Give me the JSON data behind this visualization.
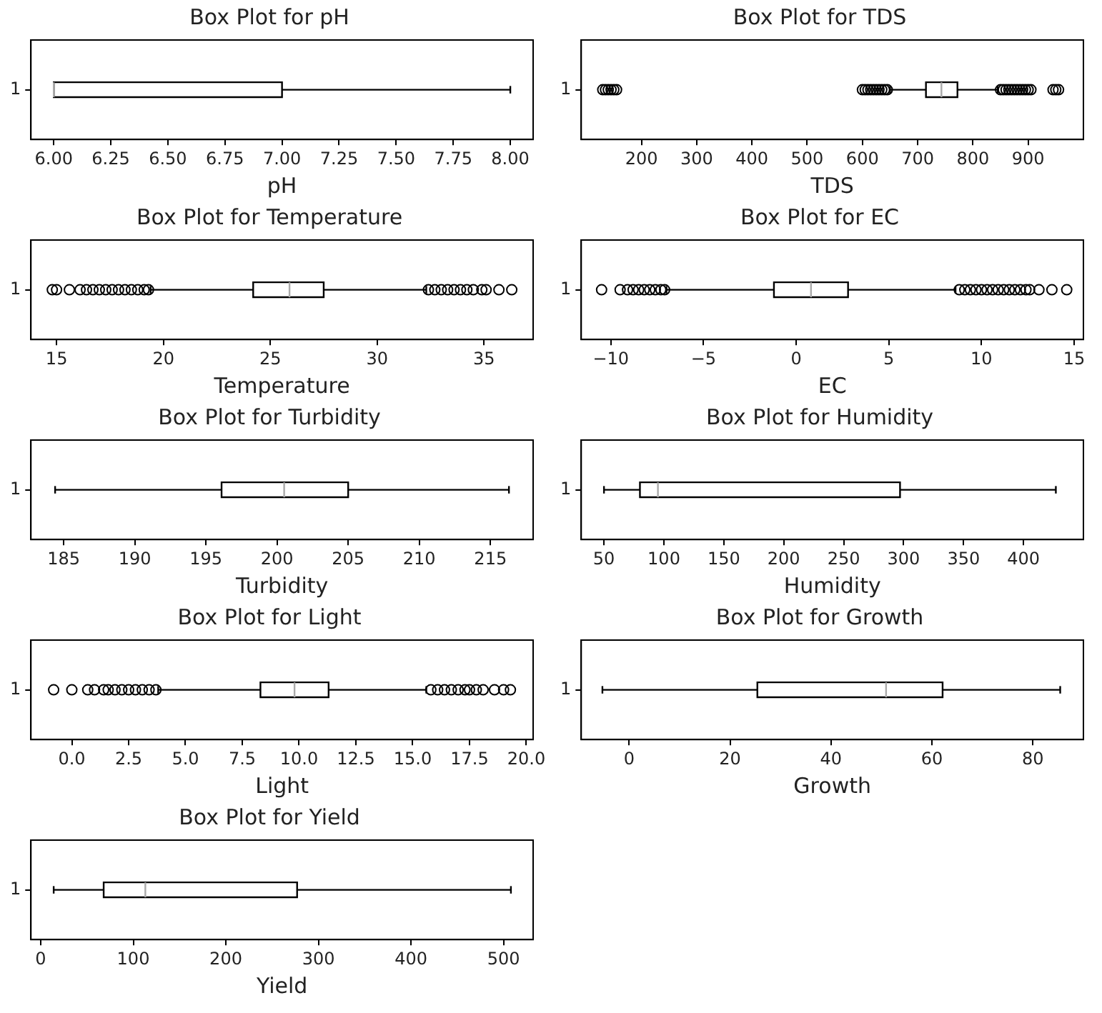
{
  "chart_data": [
    {
      "type": "box",
      "title": "Box Plot for pH",
      "xlabel": "pH",
      "orientation": "horizontal",
      "categories": [
        "1"
      ],
      "xlim": [
        5.9,
        8.1
      ],
      "xticks": [
        {
          "value": 6,
          "label": "6.00"
        },
        {
          "value": 6.25,
          "label": "6.25"
        },
        {
          "value": 6.5,
          "label": "6.50"
        },
        {
          "value": 6.75,
          "label": "6.75"
        },
        {
          "value": 7,
          "label": "7.00"
        },
        {
          "value": 7.25,
          "label": "7.25"
        },
        {
          "value": 7.5,
          "label": "7.50"
        },
        {
          "value": 7.75,
          "label": "7.75"
        },
        {
          "value": 8,
          "label": "8.00"
        }
      ],
      "boxes": [
        {
          "low": 6,
          "q1": 6,
          "median": 6,
          "q3": 7,
          "high": 8
        }
      ]
    },
    {
      "type": "box",
      "title": "Box Plot for TDS",
      "xlabel": "TDS",
      "orientation": "horizontal",
      "categories": [
        "1"
      ],
      "xlim": [
        91,
        1000
      ],
      "xticks": [
        200,
        300,
        400,
        500,
        600,
        700,
        800,
        900
      ],
      "boxes": [
        {
          "low": 650,
          "q1": 715,
          "median": 743,
          "q3": 772,
          "high": 845,
          "outliers": [
            130,
            135,
            140,
            145,
            150,
            155,
            600,
            605,
            610,
            615,
            620,
            625,
            630,
            635,
            640,
            645,
            850,
            855,
            860,
            865,
            870,
            875,
            880,
            885,
            890,
            895,
            900,
            905,
            945,
            950,
            955
          ]
        }
      ]
    },
    {
      "type": "box",
      "title": "Box Plot for Temperature",
      "xlabel": "Temperature",
      "orientation": "horizontal",
      "categories": [
        "1"
      ],
      "xlim": [
        13.8,
        37.3
      ],
      "xticks": [
        15,
        20,
        25,
        30,
        35
      ],
      "boxes": [
        {
          "low": 19.4,
          "q1": 24.2,
          "median": 25.9,
          "q3": 27.5,
          "high": 32.3,
          "outliers": [
            14.8,
            15.0,
            15.6,
            16.1,
            16.4,
            16.7,
            17.0,
            17.3,
            17.6,
            17.9,
            18.2,
            18.5,
            18.8,
            19.1,
            19.3,
            32.4,
            32.7,
            33.0,
            33.3,
            33.6,
            33.9,
            34.2,
            34.5,
            34.9,
            35.1,
            35.7,
            36.3
          ]
        }
      ]
    },
    {
      "type": "box",
      "title": "Box Plot for EC",
      "xlabel": "EC",
      "orientation": "horizontal",
      "categories": [
        "1"
      ],
      "xlim": [
        -11.6,
        15.5
      ],
      "xticks": [
        {
          "value": -10,
          "label": "−10"
        },
        {
          "value": -5,
          "label": "−5"
        },
        0,
        5,
        10,
        15
      ],
      "boxes": [
        {
          "low": -7.0,
          "q1": -1.2,
          "median": 0.8,
          "q3": 2.8,
          "high": 8.6,
          "outliers": [
            -10.5,
            -9.5,
            -9.1,
            -8.8,
            -8.5,
            -8.2,
            -7.9,
            -7.6,
            -7.3,
            -7.1,
            8.8,
            9.1,
            9.4,
            9.7,
            10.0,
            10.3,
            10.6,
            10.9,
            11.2,
            11.5,
            11.8,
            12.1,
            12.4,
            12.6,
            13.1,
            13.8,
            14.6
          ]
        }
      ]
    },
    {
      "type": "box",
      "title": "Box Plot for Turbidity",
      "xlabel": "Turbidity",
      "orientation": "horizontal",
      "categories": [
        "1"
      ],
      "xlim": [
        182.7,
        218
      ],
      "xticks": [
        185,
        190,
        195,
        200,
        205,
        210,
        215
      ],
      "boxes": [
        {
          "low": 184.4,
          "q1": 196.1,
          "median": 200.5,
          "q3": 205,
          "high": 216.3
        }
      ]
    },
    {
      "type": "box",
      "title": "Box Plot for Humidity",
      "xlabel": "Humidity",
      "orientation": "horizontal",
      "categories": [
        "1"
      ],
      "xlim": [
        31,
        450
      ],
      "xticks": [
        50,
        100,
        150,
        200,
        250,
        300,
        350,
        400
      ],
      "boxes": [
        {
          "low": 50,
          "q1": 80,
          "median": 95,
          "q3": 297,
          "high": 427
        }
      ]
    },
    {
      "type": "box",
      "title": "Box Plot for Light",
      "xlabel": "Light",
      "orientation": "horizontal",
      "categories": [
        "1"
      ],
      "xlim": [
        -1.8,
        20.3
      ],
      "xticks": [
        {
          "value": 0,
          "label": "0.0"
        },
        2.5,
        {
          "value": 5,
          "label": "5.0"
        },
        7.5,
        {
          "value": 10,
          "label": "10.0"
        },
        12.5,
        {
          "value": 15,
          "label": "15.0"
        },
        17.5,
        {
          "value": 20,
          "label": "20.0"
        }
      ],
      "boxes": [
        {
          "low": 3.8,
          "q1": 8.3,
          "median": 9.8,
          "q3": 11.3,
          "high": 15.6,
          "outliers": [
            -0.8,
            0.0,
            0.7,
            1.0,
            1.4,
            1.6,
            1.9,
            2.2,
            2.5,
            2.8,
            3.1,
            3.4,
            3.7,
            15.8,
            16.1,
            16.4,
            16.7,
            17.0,
            17.3,
            17.5,
            17.8,
            18.1,
            18.6,
            19.0,
            19.3
          ]
        }
      ]
    },
    {
      "type": "box",
      "title": "Box Plot for Growth",
      "xlabel": "Growth",
      "orientation": "horizontal",
      "categories": [
        "1"
      ],
      "xlim": [
        -9.5,
        90
      ],
      "xticks": [
        0,
        20,
        40,
        60,
        80
      ],
      "boxes": [
        {
          "low": -5.3,
          "q1": 25.4,
          "median": 50.9,
          "q3": 62.1,
          "high": 85.4
        }
      ]
    },
    {
      "type": "box",
      "title": "Box Plot for Yield",
      "xlabel": "Yield",
      "orientation": "horizontal",
      "categories": [
        "1"
      ],
      "xlim": [
        -10.6,
        532
      ],
      "xticks": [
        0,
        100,
        200,
        300,
        400,
        500
      ],
      "boxes": [
        {
          "low": 14,
          "q1": 68,
          "median": 113,
          "q3": 277,
          "high": 508
        }
      ]
    }
  ]
}
